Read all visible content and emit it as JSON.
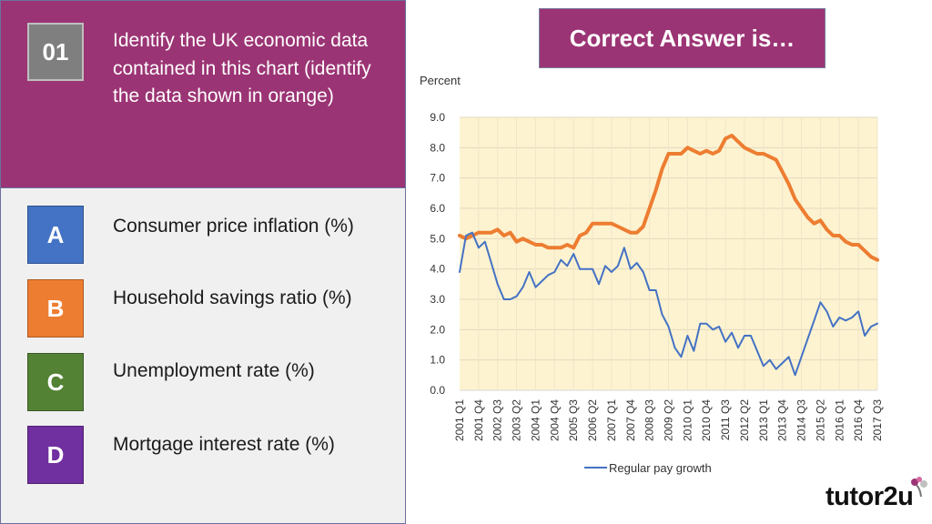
{
  "question": {
    "number": "01",
    "text": "Identify the  UK economic data contained in this chart (identify the data shown in orange)"
  },
  "options": [
    {
      "letter": "A",
      "text": "Consumer price inflation (%)",
      "color": "#4472c4"
    },
    {
      "letter": "B",
      "text": "Household savings ratio (%)",
      "color": "#ed7d31"
    },
    {
      "letter": "C",
      "text": "Unemployment rate (%)",
      "color": "#548235"
    },
    {
      "letter": "D",
      "text": "Mortgage interest rate (%)",
      "color": "#7030a0"
    }
  ],
  "answer_box": {
    "text": "Correct Answer is…"
  },
  "logo": {
    "text": "tutor2u"
  },
  "chart_data": {
    "type": "line",
    "ylabel": "Percent",
    "ylim": [
      0,
      9
    ],
    "yticks": [
      "0.0",
      "1.0",
      "2.0",
      "3.0",
      "4.0",
      "5.0",
      "6.0",
      "7.0",
      "8.0",
      "9.0"
    ],
    "x_tick_labels": [
      "2001 Q1",
      "2001 Q4",
      "2002 Q3",
      "2003 Q2",
      "2004 Q1",
      "2004 Q4",
      "2005 Q3",
      "2006 Q2",
      "2007 Q1",
      "2007 Q4",
      "2008 Q3",
      "2009 Q2",
      "2010 Q1",
      "2010 Q4",
      "2011 Q3",
      "2012 Q2",
      "2013 Q1",
      "2013 Q4",
      "2014 Q3",
      "2015 Q2",
      "2016 Q1",
      "2016 Q4",
      "2017 Q3"
    ],
    "plot_background": "#fdf3d1",
    "legend_position": "bottom",
    "series": [
      {
        "name": "",
        "color": "#ed7d31",
        "values": [
          5.1,
          5.0,
          5.1,
          5.2,
          5.2,
          5.2,
          5.3,
          5.1,
          5.2,
          4.9,
          5.0,
          4.9,
          4.8,
          4.8,
          4.7,
          4.7,
          4.7,
          4.8,
          4.7,
          5.1,
          5.2,
          5.5,
          5.5,
          5.5,
          5.5,
          5.4,
          5.3,
          5.2,
          5.2,
          5.4,
          6.0,
          6.6,
          7.3,
          7.8,
          7.8,
          7.8,
          8.0,
          7.9,
          7.8,
          7.9,
          7.8,
          7.9,
          8.3,
          8.4,
          8.2,
          8.0,
          7.9,
          7.8,
          7.8,
          7.7,
          7.6,
          7.2,
          6.8,
          6.3,
          6.0,
          5.7,
          5.5,
          5.6,
          5.3,
          5.1,
          5.1,
          4.9,
          4.8,
          4.8,
          4.6,
          4.4,
          4.3
        ]
      },
      {
        "name": "Regular pay growth",
        "color": "#4472c4",
        "values": [
          3.9,
          5.1,
          5.2,
          4.7,
          4.9,
          4.2,
          3.5,
          3.0,
          3.0,
          3.1,
          3.4,
          3.9,
          3.4,
          3.6,
          3.8,
          3.9,
          4.3,
          4.1,
          4.5,
          4.0,
          4.0,
          4.0,
          3.5,
          4.1,
          3.9,
          4.1,
          4.7,
          4.0,
          4.2,
          3.9,
          3.3,
          3.3,
          2.5,
          2.1,
          1.4,
          1.1,
          1.8,
          1.3,
          2.2,
          2.2,
          2.0,
          2.1,
          1.6,
          1.9,
          1.4,
          1.8,
          1.8,
          1.3,
          0.8,
          1.0,
          0.7,
          0.9,
          1.1,
          0.5,
          1.1,
          1.7,
          2.3,
          2.9,
          2.6,
          2.1,
          2.4,
          2.3,
          2.4,
          2.6,
          1.8,
          2.1,
          2.2
        ]
      }
    ]
  }
}
